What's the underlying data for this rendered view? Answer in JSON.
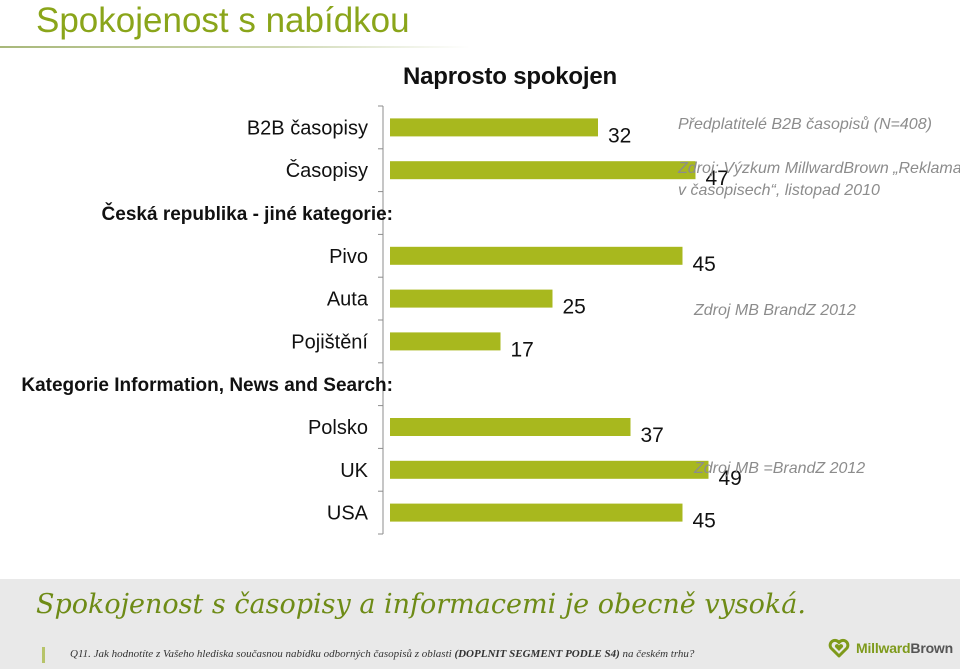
{
  "page": {
    "title": "Spokojenost s nabídkou",
    "conclusion": "Spokojenost s časopisy a informacemi je obecně vysoká.",
    "footnote_prefix": "Q11. Jak hodnotíte z Vašeho hlediska současnou nabídku odborných časopisů z oblasti ",
    "footnote_bold": "(DOPLNIT SEGMENT PODLE S4)",
    "footnote_suffix": " na českém trhu?",
    "logo_text_1": "Millward",
    "logo_text_2": "Brown",
    "logo_icon": "millwardbrown-logo-icon"
  },
  "notes": {
    "b2b_line1": "Předplatitelé B2B časopisů (N=408)",
    "b2b_line2": "Zdroj: Výzkum MillwardBrown „Reklama",
    "b2b_line3": "v časopisech“, listopad 2010",
    "cz_source": "Zdroj MB BrandZ 2012",
    "world_source": "Zdroj MB =BrandZ 2012"
  },
  "chart_data": {
    "type": "bar",
    "orientation": "horizontal",
    "title": "Naprosto spokojen",
    "bar_color": "#a8b81e",
    "xlim": [
      0,
      70
    ],
    "categories": [
      "B2B časopisy",
      "Časopisy",
      "Česká republika - jiné kategorie:",
      "Pivo",
      "Auta",
      "Pojištění",
      "Kategorie Information, News and Search:",
      "Polsko",
      "UK",
      "USA"
    ],
    "category_is_header": [
      false,
      false,
      true,
      false,
      false,
      false,
      true,
      false,
      false,
      false
    ],
    "values": [
      32,
      47,
      null,
      45,
      25,
      17,
      null,
      37,
      49,
      45
    ]
  }
}
